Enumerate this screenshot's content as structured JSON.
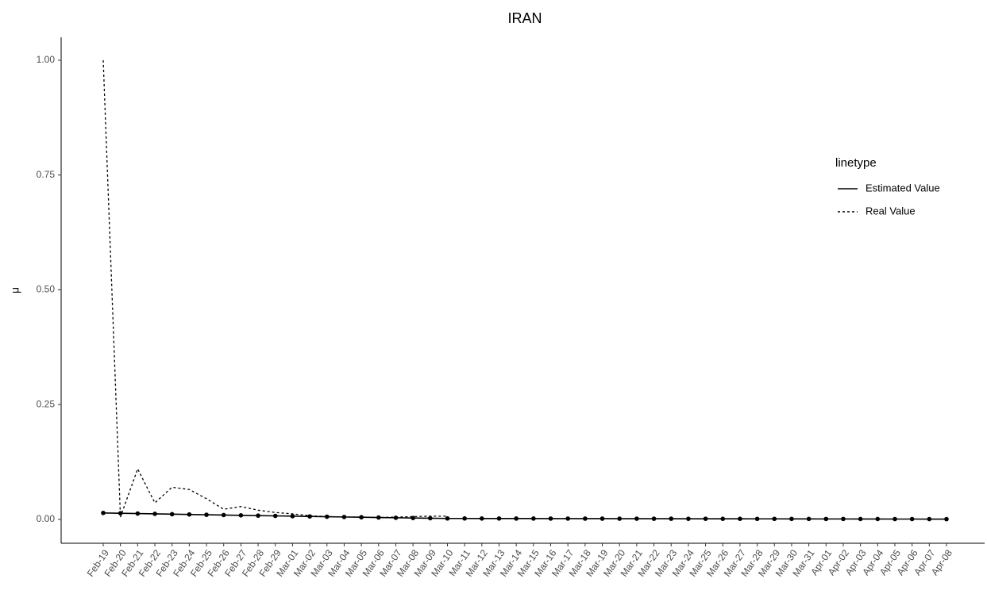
{
  "chart_data": {
    "type": "line",
    "title": "IRAN",
    "y_label": "μ",
    "legend_title": "linetype",
    "categories": [
      "Feb-19",
      "Feb-20",
      "Feb-21",
      "Feb-22",
      "Feb-23",
      "Feb-24",
      "Feb-25",
      "Feb-26",
      "Feb-27",
      "Feb-28",
      "Feb-29",
      "Mar-01",
      "Mar-02",
      "Mar-03",
      "Mar-04",
      "Mar-05",
      "Mar-06",
      "Mar-07",
      "Mar-08",
      "Mar-09",
      "Mar-10",
      "Mar-11",
      "Mar-12",
      "Mar-13",
      "Mar-14",
      "Mar-15",
      "Mar-16",
      "Mar-17",
      "Mar-18",
      "Mar-19",
      "Mar-20",
      "Mar-21",
      "Mar-22",
      "Mar-23",
      "Mar-24",
      "Mar-25",
      "Mar-26",
      "Mar-27",
      "Mar-28",
      "Mar-29",
      "Mar-30",
      "Mar-31",
      "Apr-01",
      "Apr-02",
      "Apr-03",
      "Apr-04",
      "Apr-05",
      "Apr-06",
      "Apr-07",
      "Apr-08"
    ],
    "series": [
      {
        "name": "Estimated Value",
        "color": "#000000",
        "linestyle": "solid",
        "markers": true,
        "values": [
          0.014,
          0.0133,
          0.0127,
          0.012,
          0.0113,
          0.0107,
          0.01,
          0.0094,
          0.0088,
          0.0082,
          0.0076,
          0.007,
          0.0064,
          0.0058,
          0.0052,
          0.0046,
          0.004,
          0.0035,
          0.003,
          0.0025,
          0.002,
          0.002,
          0.0019,
          0.0019,
          0.0018,
          0.0018,
          0.0017,
          0.0017,
          0.0016,
          0.0016,
          0.0015,
          0.0015,
          0.0014,
          0.0014,
          0.0013,
          0.0013,
          0.0012,
          0.0012,
          0.0011,
          0.0011,
          0.001,
          0.001,
          0.0009,
          0.0009,
          0.0008,
          0.0008,
          0.0007,
          0.0007,
          0.0006,
          0.0005
        ]
      },
      {
        "name": "Real Value",
        "color": "#000000",
        "linestyle": "dotted",
        "markers": false,
        "values": [
          1,
          0.005,
          0.11,
          0.036,
          0.07,
          0.065,
          0.045,
          0.022,
          0.028,
          0.02,
          0.015,
          0.012,
          0.008,
          0.006,
          0.005,
          0.005,
          0.004,
          0.005,
          0.006,
          0.007,
          0.007,
          null,
          null,
          null,
          null,
          null,
          null,
          null,
          null,
          null,
          null,
          null,
          null,
          null,
          null,
          null,
          null,
          null,
          null,
          null,
          null,
          null,
          null,
          null,
          null,
          null,
          null,
          null,
          null,
          null
        ]
      }
    ],
    "ylim": [
      -0.052,
      1.05
    ],
    "yticks": [
      {
        "value": 0,
        "label": "0.00"
      },
      {
        "value": 0.25,
        "label": "0.25"
      },
      {
        "value": 0.5,
        "label": "0.50"
      },
      {
        "value": 0.75,
        "label": "0.75"
      },
      {
        "value": 1,
        "label": "1.00"
      }
    ],
    "grid": false
  }
}
